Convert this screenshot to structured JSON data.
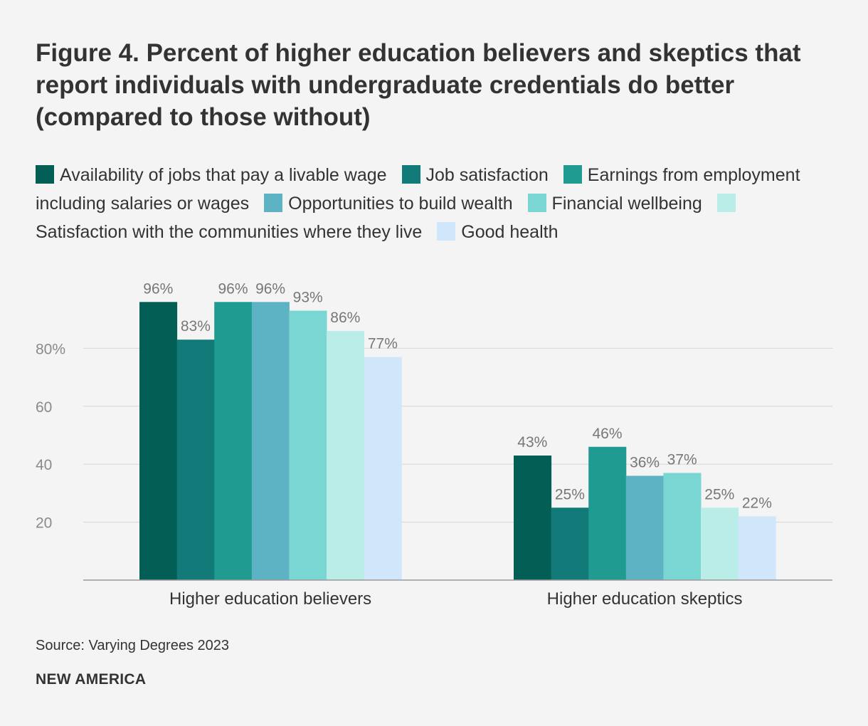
{
  "title": "Figure 4. Percent of higher education believers and skeptics that report individuals with undergraduate credentials do better (compared to those without)",
  "source": "Source: Varying Degrees 2023",
  "brand": "NEW AMERICA",
  "chart_data": {
    "type": "bar",
    "title": "Figure 4. Percent of higher education believers and skeptics that report individuals with undergraduate credentials do better (compared to those without)",
    "categories": [
      "Higher education believers",
      "Higher education skeptics"
    ],
    "series": [
      {
        "name": "Availability of jobs that pay a livable wage",
        "color": "#035e55",
        "values": [
          96,
          43
        ],
        "labels": [
          "96%",
          "43%"
        ]
      },
      {
        "name": "Job satisfaction",
        "color": "#127b79",
        "values": [
          83,
          25
        ],
        "labels": [
          "83%",
          "25%"
        ]
      },
      {
        "name": "Earnings from employment including salaries or wages",
        "color": "#1f9b91",
        "values": [
          96,
          46
        ],
        "labels": [
          "96%",
          "46%"
        ]
      },
      {
        "name": "Opportunities to build wealth",
        "color": "#5db3c4",
        "values": [
          96,
          36
        ],
        "labels": [
          "96%",
          "36%"
        ]
      },
      {
        "name": "Financial wellbeing",
        "color": "#79d6d2",
        "values": [
          93,
          37
        ],
        "labels": [
          "93%",
          "37%"
        ]
      },
      {
        "name": "Satisfaction with the communities where they live",
        "color": "#bbede8",
        "values": [
          86,
          25
        ],
        "labels": [
          "86%",
          "25%"
        ]
      },
      {
        "name": "Good health",
        "color": "#cfe6fb",
        "values": [
          77,
          22
        ],
        "labels": [
          "77%",
          "22%"
        ]
      }
    ],
    "yticks": [
      20,
      40,
      60,
      80
    ],
    "ytick_labels": [
      "20",
      "40",
      "60",
      "80%"
    ],
    "ylim": [
      0,
      100
    ],
    "grid": true,
    "legend": "top",
    "xlabel": "",
    "ylabel": ""
  }
}
